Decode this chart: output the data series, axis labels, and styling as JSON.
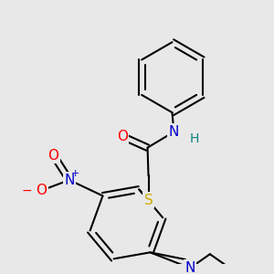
{
  "bg_color": "#e8e8e8",
  "bond_color": "#000000",
  "bond_width": 1.5,
  "atom_colors": {
    "O": "#ff0000",
    "N": "#0000cc",
    "S": "#ccaa00",
    "H": "#008080",
    "C": "#000000"
  },
  "font_size": 9,
  "figsize": [
    3.0,
    3.0
  ],
  "dpi": 100
}
